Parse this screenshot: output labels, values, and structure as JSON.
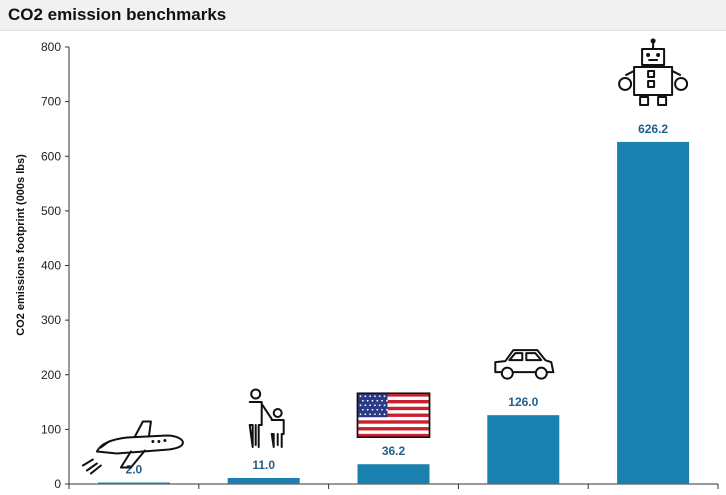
{
  "header": {
    "title": "CO2 emission benchmarks"
  },
  "chart_data": {
    "type": "bar",
    "title": "",
    "xlabel": "",
    "ylabel": "CO2 emissions footprint (000s lbs)",
    "ylim": [
      0,
      800
    ],
    "yticks": [
      0,
      100,
      200,
      300,
      400,
      500,
      600,
      700,
      800
    ],
    "grid": false,
    "bar_color": "#1a80b0",
    "label_color": "#1f5f8b",
    "categories": [
      "",
      "",
      "",
      "",
      ""
    ],
    "values": [
      2.0,
      11.0,
      36.2,
      126.0,
      626.2
    ],
    "value_labels": [
      "2.0",
      "11.0",
      "36.2",
      "126.0",
      "626.2"
    ],
    "icons": [
      "airplane-icon",
      "people-icon",
      "us-flag-icon",
      "car-icon",
      "robot-icon"
    ]
  }
}
